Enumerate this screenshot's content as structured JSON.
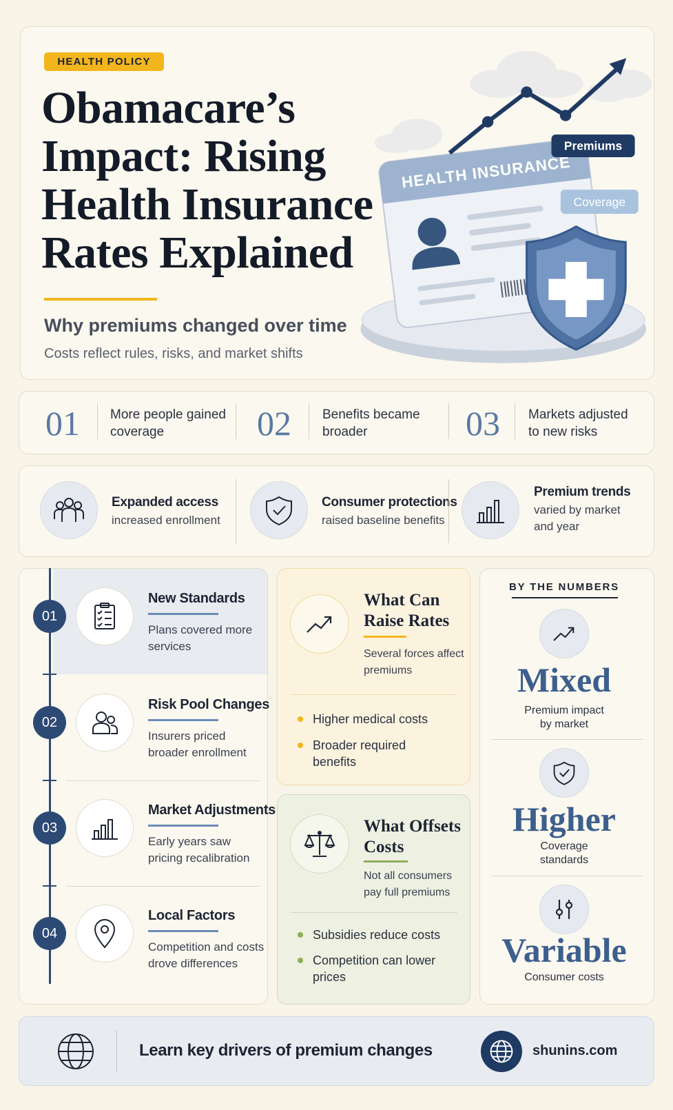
{
  "header": {
    "tag": "HEALTH POLICY",
    "title_lines": [
      "Obamacare’s",
      "Impact: Rising",
      "Health Insurance",
      "Rates Explained"
    ],
    "subtitle": "Why premiums changed over time",
    "description": "Costs reflect rules, risks, and market shifts"
  },
  "illustration": {
    "card_label": "HEALTH INSURANCE",
    "tags": [
      "Premiums",
      "Coverage"
    ]
  },
  "steps": [
    {
      "number": "01",
      "text": "More people gained coverage"
    },
    {
      "number": "02",
      "text": "Benefits became broader"
    },
    {
      "number": "03",
      "text": "Markets adjusted to new risks"
    }
  ],
  "highlights": [
    {
      "title": "Expanded access",
      "text": "increased enrollment"
    },
    {
      "title": "Consumer protections",
      "text": "raised baseline benefits"
    },
    {
      "title": "Premium trends",
      "text": "varied by market and year"
    }
  ],
  "timeline": [
    {
      "number": "01",
      "title": "New Standards",
      "text": "Plans covered more services"
    },
    {
      "number": "02",
      "title": "Risk Pool Changes",
      "text": "Insurers priced broader enrollment"
    },
    {
      "number": "03",
      "title": "Market Adjustments",
      "text": "Early years saw pricing recalibration"
    },
    {
      "number": "04",
      "title": "Local Factors",
      "text": "Competition and costs drove differences"
    }
  ],
  "raise": {
    "title": "What Can Raise Rates",
    "subtitle": "Several forces affect premiums",
    "items": [
      "Higher medical costs",
      "Broader required benefits"
    ]
  },
  "offset": {
    "title": "What Offsets Costs",
    "subtitle": "Not all consumers pay full premiums",
    "items": [
      "Subsidies reduce costs",
      "Competition can lower prices"
    ]
  },
  "numbers": {
    "heading": "BY THE NUMBERS",
    "stats": [
      {
        "value": "Mixed",
        "label": "Premium impact by market"
      },
      {
        "value": "Higher",
        "label": "Coverage standards"
      },
      {
        "value": "Variable",
        "label": "Consumer costs"
      }
    ]
  },
  "footer": {
    "text": "Learn key drivers of premium changes",
    "site": "shunins.com"
  }
}
